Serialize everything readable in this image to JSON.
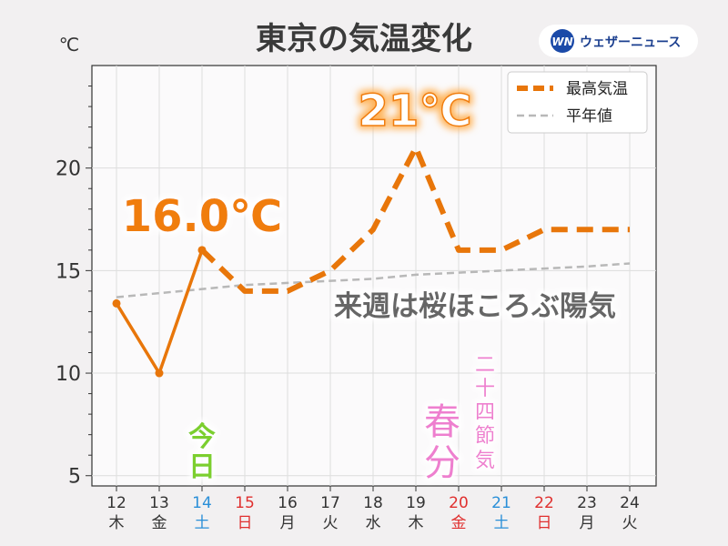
{
  "header": {
    "title": "東京の気温変化",
    "unit_label": "℃",
    "logo_mark": "WN",
    "logo_text": "ウェザーニュース"
  },
  "legend": {
    "max_temp_label": "最高気温",
    "normal_label": "平年値",
    "placement": "top-right"
  },
  "annotations": {
    "today_peak": "16.0℃",
    "future_peak": "21℃",
    "message": "来週は桜ほころぶ陽気",
    "today": [
      "今",
      "日"
    ],
    "shunbun": [
      "春",
      "分"
    ],
    "sekki": [
      "二",
      "十",
      "四",
      "節",
      "気"
    ]
  },
  "colors": {
    "max_temp": "#e8760a",
    "normal": "#b8b8b8",
    "today": "#7ccf2e",
    "holiday_pink": "#ee7fcf",
    "weekday": "#333333",
    "saturday": "#2a8fd8",
    "sunday": "#e0302f"
  },
  "chart_data": {
    "type": "line",
    "x_days": [
      "12",
      "13",
      "14",
      "15",
      "16",
      "17",
      "18",
      "19",
      "20",
      "21",
      "22",
      "23",
      "24"
    ],
    "x_weekdays": [
      "木",
      "金",
      "土",
      "日",
      "月",
      "火",
      "水",
      "木",
      "金",
      "土",
      "日",
      "月",
      "火"
    ],
    "x_day_colors": [
      "weekday",
      "weekday",
      "saturday",
      "sunday",
      "weekday",
      "weekday",
      "weekday",
      "weekday",
      "sunday",
      "saturday",
      "sunday",
      "weekday",
      "weekday"
    ],
    "ylabel": "℃",
    "ylim": [
      4.5,
      25
    ],
    "yticks": [
      5,
      10,
      15,
      20
    ],
    "grid": true,
    "series": [
      {
        "name": "最高気温",
        "values": [
          13.4,
          10.0,
          16.0,
          14.0,
          14.0,
          15.0,
          17.0,
          21.0,
          16.0,
          16.0,
          17.0,
          17.0,
          17.0
        ],
        "observed_count": 3
      },
      {
        "name": "平年値",
        "values": [
          13.7,
          13.9,
          14.1,
          14.3,
          14.4,
          14.5,
          14.6,
          14.8,
          14.9,
          15.0,
          15.1,
          15.2,
          15.35
        ]
      }
    ]
  }
}
